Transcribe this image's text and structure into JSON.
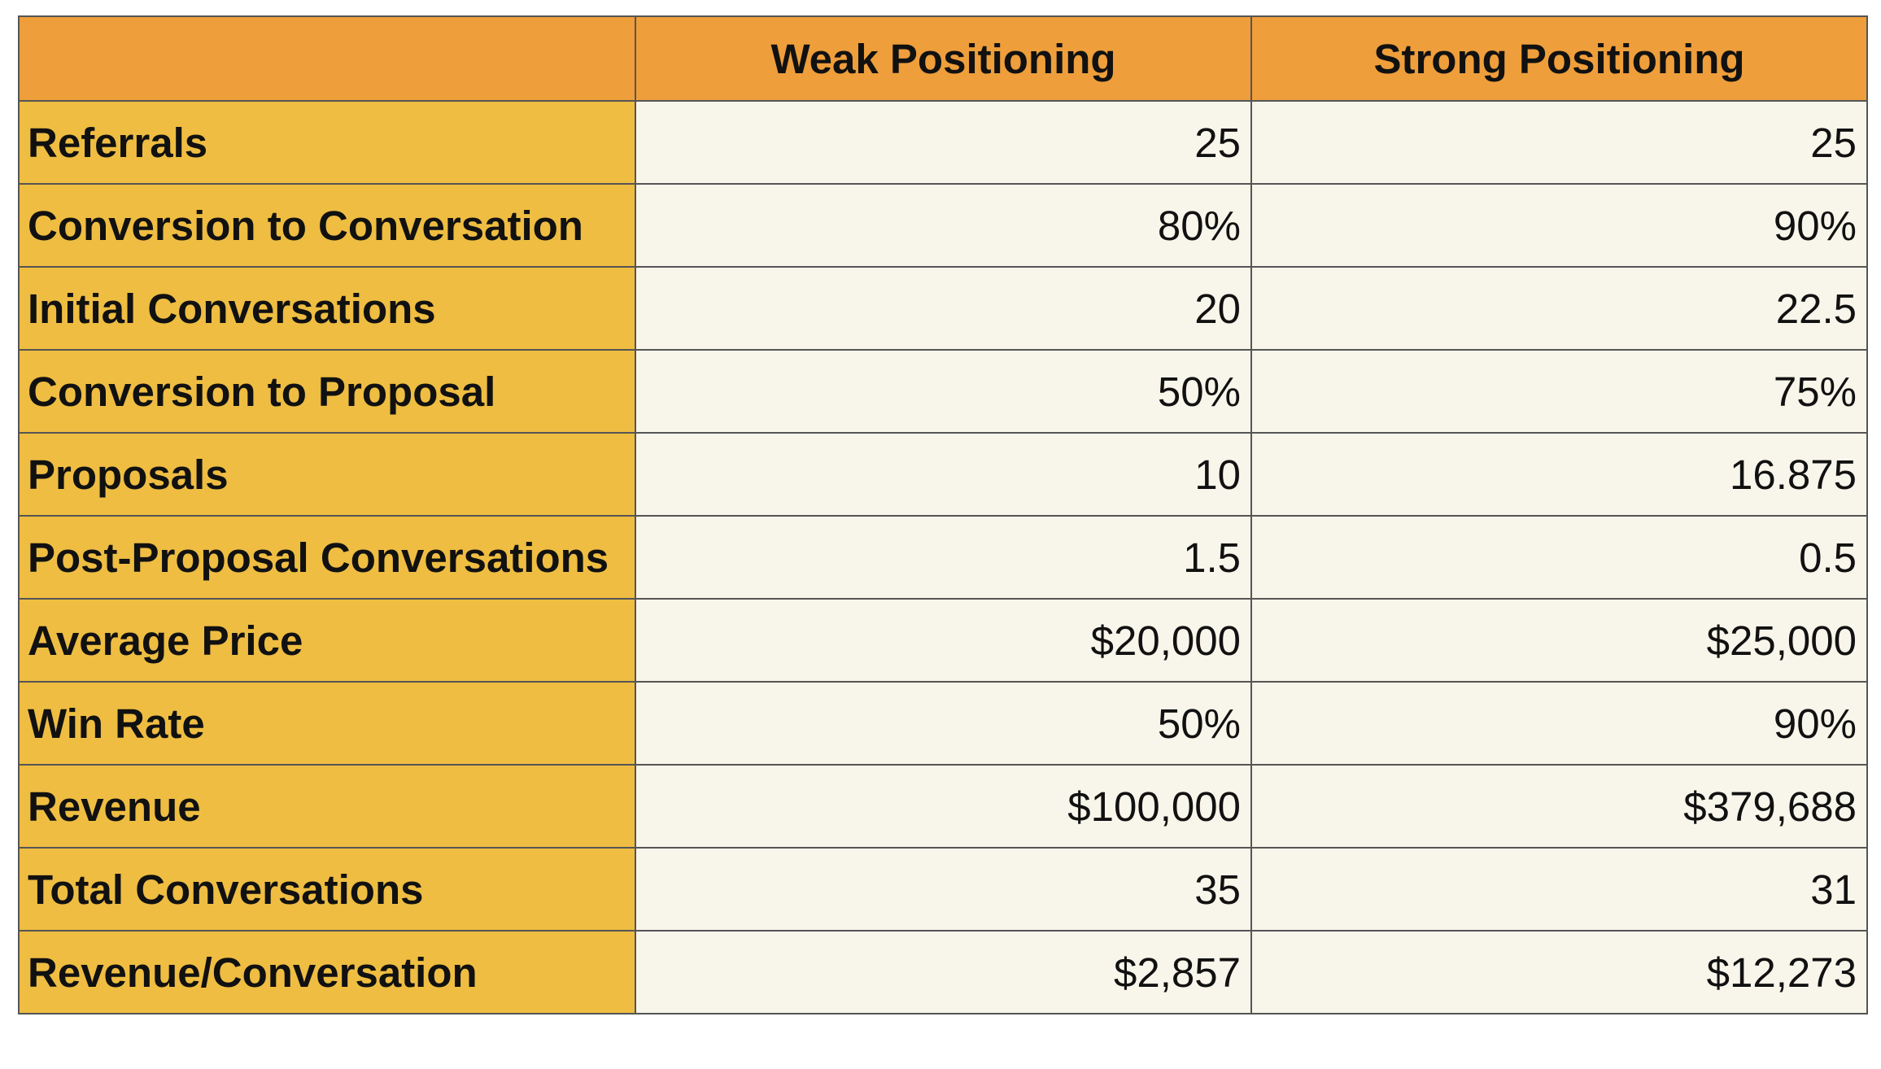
{
  "table": {
    "corner_label": "",
    "columns": [
      "Weak Positioning",
      "Strong Positioning"
    ],
    "rows": [
      {
        "label": "Referrals",
        "weak": "25",
        "strong": "25"
      },
      {
        "label": "Conversion to Conversation",
        "weak": "80%",
        "strong": "90%"
      },
      {
        "label": "Initial Conversations",
        "weak": "20",
        "strong": "22.5"
      },
      {
        "label": "Conversion to Proposal",
        "weak": "50%",
        "strong": "75%"
      },
      {
        "label": "Proposals",
        "weak": "10",
        "strong": "16.875"
      },
      {
        "label": "Post-Proposal Conversations",
        "weak": "1.5",
        "strong": "0.5"
      },
      {
        "label": "Average Price",
        "weak": "$20,000",
        "strong": "$25,000"
      },
      {
        "label": "Win Rate",
        "weak": "50%",
        "strong": "90%"
      },
      {
        "label": "Revenue",
        "weak": "$100,000",
        "strong": "$379,688"
      },
      {
        "label": "Total Conversations",
        "weak": "35",
        "strong": "31"
      },
      {
        "label": "Revenue/Conversation",
        "weak": "$2,857",
        "strong": "$12,273"
      }
    ]
  },
  "colors": {
    "header_bg": "#ee9e3b",
    "label_bg": "#eebd42",
    "cell_bg": "#f8f5ea",
    "border": "#555555"
  }
}
